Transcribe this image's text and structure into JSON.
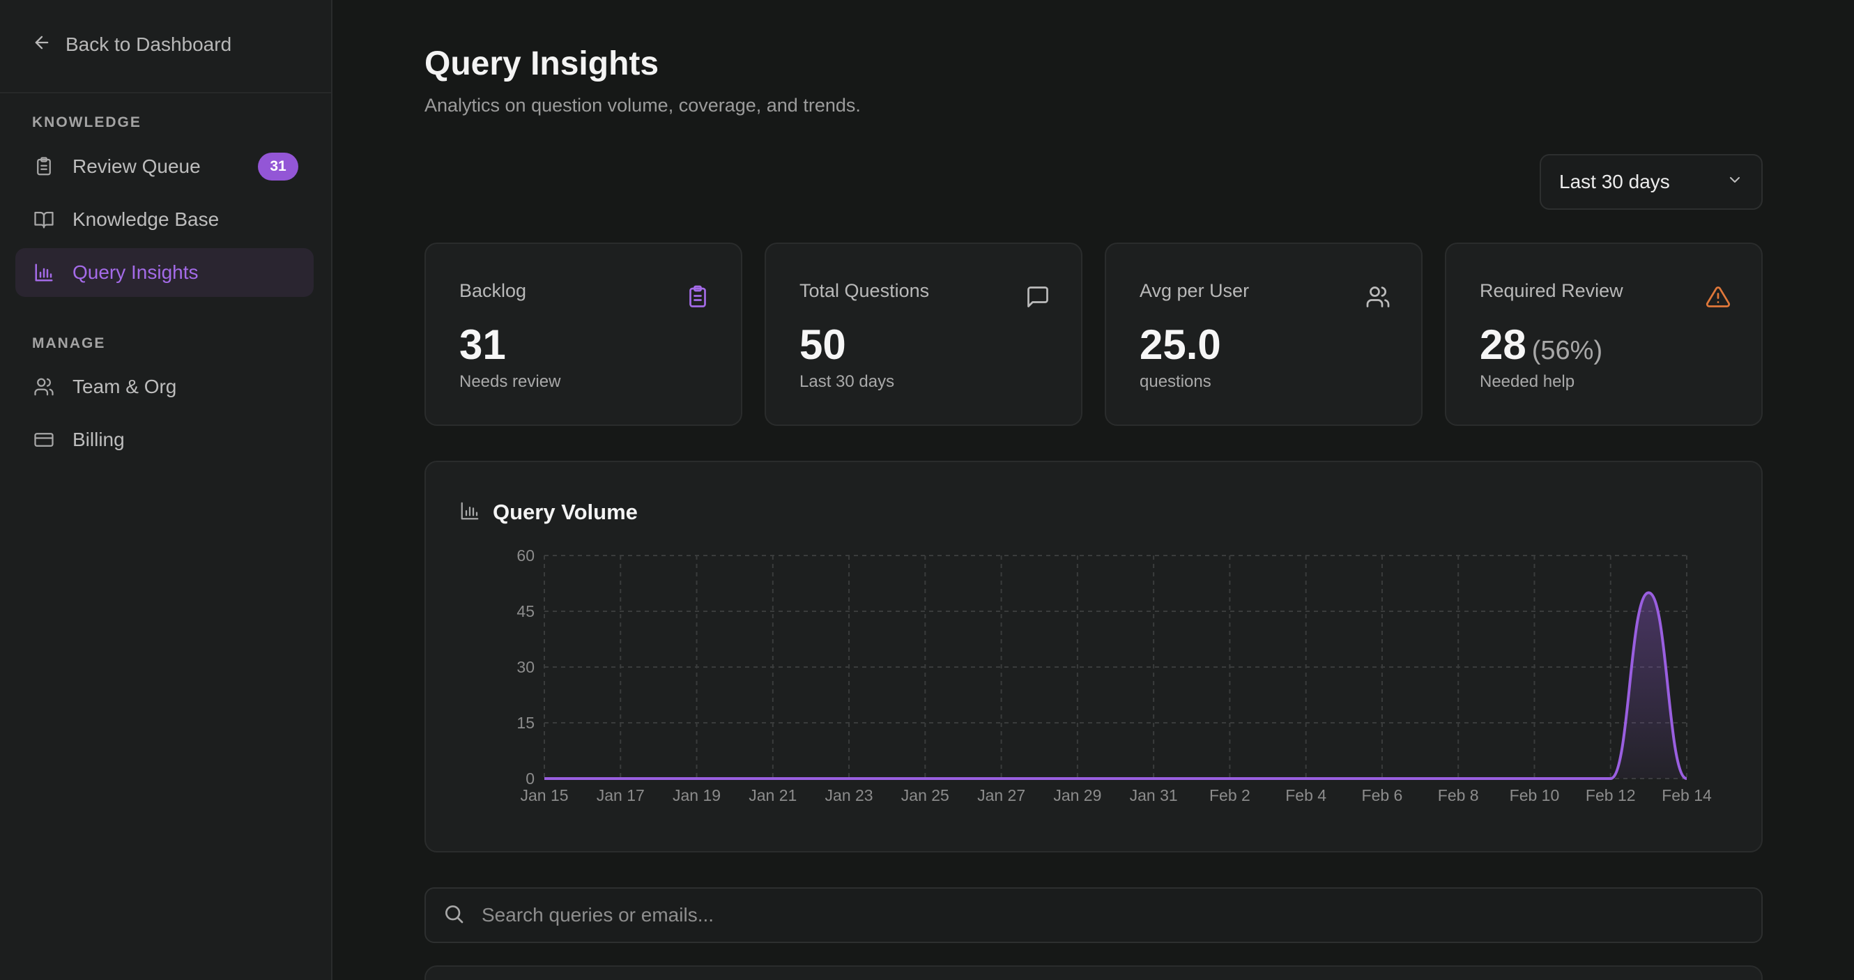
{
  "sidebar": {
    "back_label": "Back to Dashboard",
    "sections": [
      {
        "label": "KNOWLEDGE",
        "items": [
          {
            "label": "Review Queue",
            "icon": "clipboard-icon",
            "badge": "31",
            "active": false
          },
          {
            "label": "Knowledge Base",
            "icon": "book-icon",
            "active": false
          },
          {
            "label": "Query Insights",
            "icon": "bar-chart-icon",
            "active": true
          }
        ]
      },
      {
        "label": "MANAGE",
        "items": [
          {
            "label": "Team & Org",
            "icon": "users-icon",
            "active": false
          },
          {
            "label": "Billing",
            "icon": "credit-card-icon",
            "active": false
          }
        ]
      }
    ]
  },
  "header": {
    "title": "Query Insights",
    "subtitle": "Analytics on question volume, coverage, and trends."
  },
  "range_select": {
    "value": "Last 30 days"
  },
  "stats": [
    {
      "label": "Backlog",
      "value": "31",
      "extra": "",
      "sub": "Needs review",
      "icon": "clipboard-icon",
      "icon_color": "#a46be8"
    },
    {
      "label": "Total Questions",
      "value": "50",
      "extra": "",
      "sub": "Last 30 days",
      "icon": "message-icon",
      "icon_color": "#bcbcbc"
    },
    {
      "label": "Avg per User",
      "value": "25.0",
      "extra": "",
      "sub": "questions",
      "icon": "users-icon",
      "icon_color": "#bcbcbc"
    },
    {
      "label": "Required Review",
      "value": "28",
      "extra": "(56%)",
      "sub": "Needed help",
      "icon": "warning-icon",
      "icon_color": "#e0783a"
    }
  ],
  "chart_panel": {
    "title": "Query Volume",
    "icon": "bar-chart-icon"
  },
  "chart_data": {
    "type": "area",
    "title": "Query Volume",
    "x": [
      "Jan 15",
      "Jan 16",
      "Jan 17",
      "Jan 18",
      "Jan 19",
      "Jan 20",
      "Jan 21",
      "Jan 22",
      "Jan 23",
      "Jan 24",
      "Jan 25",
      "Jan 26",
      "Jan 27",
      "Jan 28",
      "Jan 29",
      "Jan 30",
      "Jan 31",
      "Feb 1",
      "Feb 2",
      "Feb 3",
      "Feb 4",
      "Feb 5",
      "Feb 6",
      "Feb 7",
      "Feb 8",
      "Feb 9",
      "Feb 10",
      "Feb 11",
      "Feb 12",
      "Feb 13",
      "Feb 14"
    ],
    "x_ticks": [
      "Jan 15",
      "Jan 17",
      "Jan 19",
      "Jan 21",
      "Jan 23",
      "Jan 25",
      "Jan 27",
      "Jan 29",
      "Jan 31",
      "Feb 2",
      "Feb 4",
      "Feb 6",
      "Feb 8",
      "Feb 10",
      "Feb 12",
      "Feb 14"
    ],
    "series": [
      {
        "values": [
          0,
          0,
          0,
          0,
          0,
          0,
          0,
          0,
          0,
          0,
          0,
          0,
          0,
          0,
          0,
          0,
          0,
          0,
          0,
          0,
          0,
          0,
          0,
          0,
          0,
          0,
          0,
          0,
          0,
          50,
          0
        ]
      }
    ],
    "ylim": [
      0,
      60
    ],
    "y_ticks": [
      0,
      15,
      30,
      45,
      60
    ],
    "grid": true,
    "color": "#9a5fe0"
  },
  "search": {
    "placeholder": "Search queries or emails..."
  }
}
